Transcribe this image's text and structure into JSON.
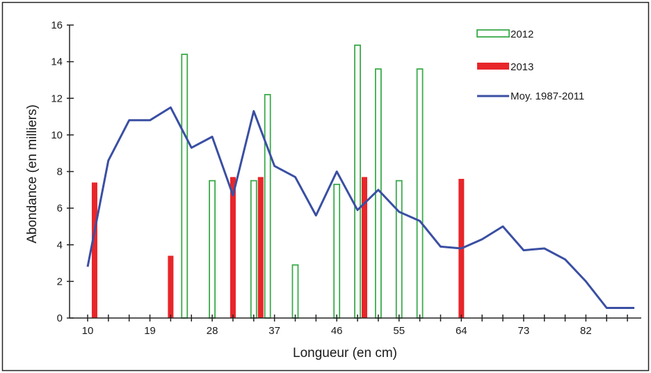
{
  "chart_data": {
    "type": "bar",
    "xlabel": "Longueur (en cm)",
    "ylabel": "Abondance (en milliers)",
    "xlim": [
      10,
      90
    ],
    "ylim": [
      0,
      16
    ],
    "x_ticks": [
      10,
      19,
      28,
      37,
      46,
      55,
      64,
      73,
      82
    ],
    "y_ticks": [
      0,
      2,
      4,
      6,
      8,
      10,
      12,
      14,
      16
    ],
    "legend_position": "top-right",
    "grid": false,
    "series": [
      {
        "name": "2012",
        "kind": "bar",
        "style": "outline",
        "color": "#3aaa4a",
        "points": [
          {
            "x": 24,
            "y": 14.4
          },
          {
            "x": 28,
            "y": 7.5
          },
          {
            "x": 34,
            "y": 7.5
          },
          {
            "x": 36,
            "y": 12.2
          },
          {
            "x": 40,
            "y": 2.9
          },
          {
            "x": 46,
            "y": 7.3
          },
          {
            "x": 49,
            "y": 14.9
          },
          {
            "x": 52,
            "y": 13.6
          },
          {
            "x": 55,
            "y": 7.5
          },
          {
            "x": 58,
            "y": 13.6
          }
        ]
      },
      {
        "name": "2013",
        "kind": "bar",
        "style": "solid",
        "color": "#e8262a",
        "points": [
          {
            "x": 11,
            "y": 7.4
          },
          {
            "x": 22,
            "y": 3.4
          },
          {
            "x": 31,
            "y": 7.7
          },
          {
            "x": 35,
            "y": 7.7
          },
          {
            "x": 50,
            "y": 7.7
          },
          {
            "x": 64,
            "y": 7.6
          }
        ]
      },
      {
        "name": "Moy. 1987-2011",
        "kind": "line",
        "color": "#3a4fa3",
        "points": [
          {
            "x": 10,
            "y": 2.8
          },
          {
            "x": 13,
            "y": 8.6
          },
          {
            "x": 16,
            "y": 10.8
          },
          {
            "x": 19,
            "y": 10.8
          },
          {
            "x": 22,
            "y": 11.5
          },
          {
            "x": 25,
            "y": 9.3
          },
          {
            "x": 28,
            "y": 9.9
          },
          {
            "x": 31,
            "y": 6.7
          },
          {
            "x": 34,
            "y": 11.3
          },
          {
            "x": 37,
            "y": 8.3
          },
          {
            "x": 40,
            "y": 7.7
          },
          {
            "x": 43,
            "y": 5.6
          },
          {
            "x": 46,
            "y": 8.0
          },
          {
            "x": 49,
            "y": 5.9
          },
          {
            "x": 52,
            "y": 7.0
          },
          {
            "x": 55,
            "y": 5.8
          },
          {
            "x": 58,
            "y": 5.3
          },
          {
            "x": 61,
            "y": 3.9
          },
          {
            "x": 64,
            "y": 3.8
          },
          {
            "x": 67,
            "y": 4.3
          },
          {
            "x": 70,
            "y": 5.0
          },
          {
            "x": 73,
            "y": 3.7
          },
          {
            "x": 76,
            "y": 3.8
          },
          {
            "x": 79,
            "y": 3.2
          },
          {
            "x": 82,
            "y": 2.0
          },
          {
            "x": 85,
            "y": 0.55
          },
          {
            "x": 89,
            "y": 0.55
          }
        ]
      }
    ]
  }
}
